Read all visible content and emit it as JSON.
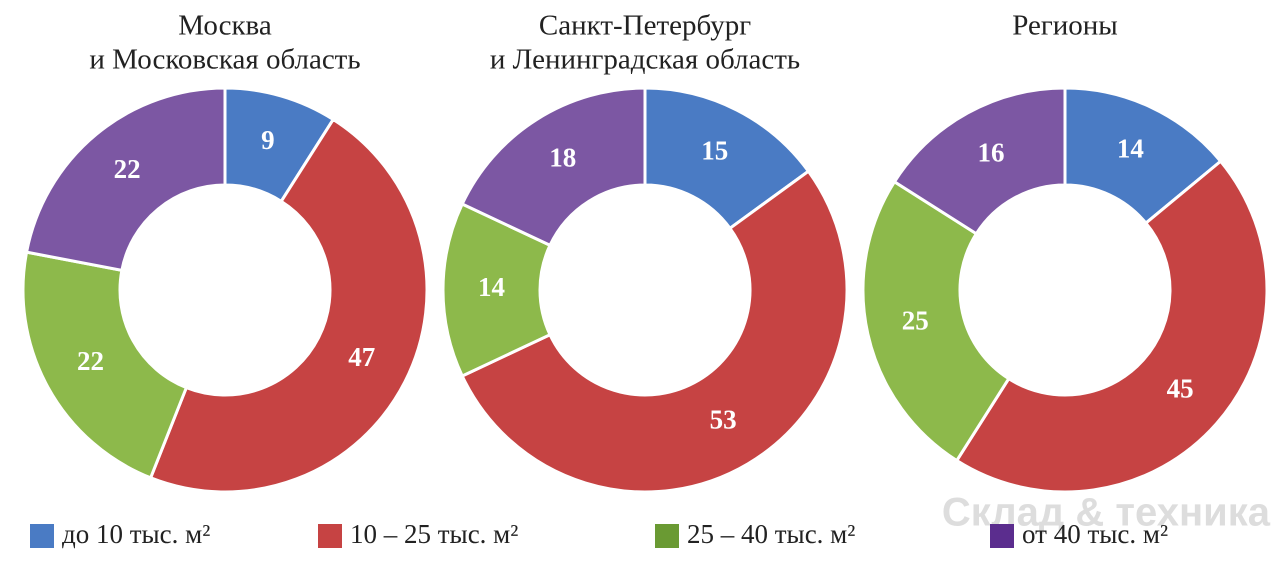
{
  "chart_data": [
    {
      "type": "donut",
      "title": [
        "Москва",
        "и Московская область"
      ],
      "values": [
        9,
        47,
        22,
        22
      ],
      "colors": [
        "#4a7bc4",
        "#c64343",
        "#8db94b",
        "#7c57a3"
      ]
    },
    {
      "type": "donut",
      "title": [
        "Санкт-Петербург",
        "и Ленинградская область"
      ],
      "values": [
        15,
        53,
        14,
        18
      ],
      "colors": [
        "#4a7bc4",
        "#c64343",
        "#8db94b",
        "#7c57a3"
      ]
    },
    {
      "type": "donut",
      "title": [
        "Регионы"
      ],
      "values": [
        14,
        45,
        25,
        16
      ],
      "colors": [
        "#4a7bc4",
        "#c64343",
        "#8db94b",
        "#7c57a3"
      ]
    }
  ],
  "legend": {
    "labels": [
      "до 10 тыс. м²",
      "10 – 25 тыс. м²",
      "25 – 40 тыс. м²",
      "от 40 тыс. м²"
    ],
    "colors": [
      "#4a7bc4",
      "#c64343",
      "#6a9a33",
      "#5b2d8e"
    ]
  },
  "watermark": "Склад & техника"
}
